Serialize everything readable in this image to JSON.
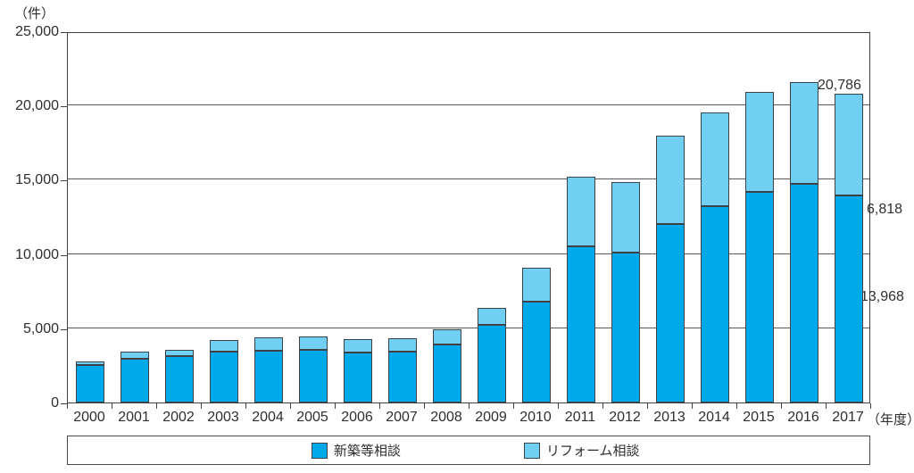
{
  "chart_data": {
    "type": "bar",
    "stacked": true,
    "title": "",
    "y_unit_label": "（件）",
    "x_unit_label": "（年度）",
    "categories": [
      "2000",
      "2001",
      "2002",
      "2003",
      "2004",
      "2005",
      "2006",
      "2007",
      "2008",
      "2009",
      "2010",
      "2011",
      "2012",
      "2013",
      "2014",
      "2015",
      "2016",
      "2017"
    ],
    "series": [
      {
        "name": "新築等相談",
        "color": "#00A9E9",
        "values": [
          2500,
          2950,
          3100,
          3400,
          3500,
          3550,
          3350,
          3400,
          3900,
          5200,
          6800,
          10500,
          10100,
          12000,
          13200,
          14200,
          14750,
          13968
        ]
      },
      {
        "name": "リフォーム相談",
        "color": "#72CFF4",
        "values": [
          250,
          450,
          450,
          800,
          900,
          900,
          900,
          950,
          1000,
          1200,
          2300,
          4700,
          4750,
          6000,
          6350,
          6700,
          6850,
          6818
        ]
      }
    ],
    "ylim": [
      0,
      25000
    ],
    "ytick_interval": 5000,
    "ytick_labels": [
      "0",
      "5,000",
      "10,000",
      "15,000",
      "20,000",
      "25,000"
    ],
    "grid": true,
    "legend_position": "bottom",
    "annotations": {
      "total_2017": "20,786",
      "reform_2017": "6,818",
      "new_2017": "13,968"
    }
  }
}
